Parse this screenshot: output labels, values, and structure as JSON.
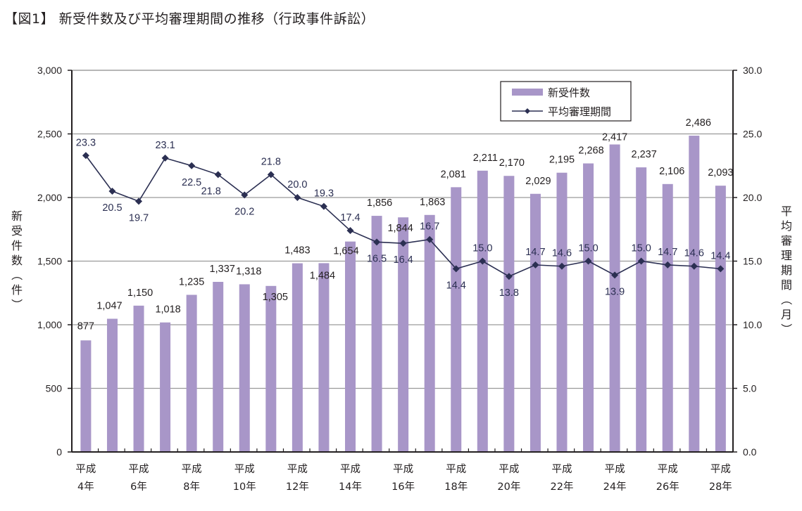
{
  "title": "【図1】 新受件数及び平均審理期間の推移（行政事件訴訟）",
  "chart_data": {
    "type": "bar+line",
    "title": "【図1】 新受件数及び平均審理期間の推移（行政事件訴訟）",
    "categories": [
      "平成4年",
      "平成5年",
      "平成6年",
      "平成7年",
      "平成8年",
      "平成9年",
      "平成10年",
      "平成11年",
      "平成12年",
      "平成13年",
      "平成14年",
      "平成15年",
      "平成16年",
      "平成17年",
      "平成18年",
      "平成19年",
      "平成20年",
      "平成21年",
      "平成22年",
      "平成23年",
      "平成24年",
      "平成25年",
      "平成26年",
      "平成27年",
      "平成28年"
    ],
    "category_tick_labels": [
      {
        "index": 0,
        "line1": "平成",
        "line2": "4年"
      },
      {
        "index": 2,
        "line1": "平成",
        "line2": "6年"
      },
      {
        "index": 4,
        "line1": "平成",
        "line2": "8年"
      },
      {
        "index": 6,
        "line1": "平成",
        "line2": "10年"
      },
      {
        "index": 8,
        "line1": "平成",
        "line2": "12年"
      },
      {
        "index": 10,
        "line1": "平成",
        "line2": "14年"
      },
      {
        "index": 12,
        "line1": "平成",
        "line2": "16年"
      },
      {
        "index": 14,
        "line1": "平成",
        "line2": "18年"
      },
      {
        "index": 16,
        "line1": "平成",
        "line2": "20年"
      },
      {
        "index": 18,
        "line1": "平成",
        "line2": "22年"
      },
      {
        "index": 20,
        "line1": "平成",
        "line2": "24年"
      },
      {
        "index": 22,
        "line1": "平成",
        "line2": "26年"
      },
      {
        "index": 24,
        "line1": "平成",
        "line2": "28年"
      }
    ],
    "series": [
      {
        "name": "新受件数",
        "type": "bar",
        "axis": "left",
        "color": "#a896c8",
        "values": [
          877,
          1047,
          1150,
          1018,
          1235,
          1337,
          1318,
          1305,
          1483,
          1484,
          1654,
          1856,
          1844,
          1863,
          2081,
          2211,
          2170,
          2029,
          2195,
          2268,
          2417,
          2237,
          2106,
          2486,
          2093
        ],
        "labels": [
          "877",
          "1,047",
          "1,150",
          "1,018",
          "1,235",
          "1,337",
          "1,318",
          "1,305",
          "1,483",
          "1,484",
          "1,654",
          "1,856",
          "1,844",
          "1,863",
          "2,081",
          "2,211",
          "2,170",
          "2,029",
          "2,195",
          "2,268",
          "2,417",
          "2,237",
          "2,106",
          "2,486",
          "2,093"
        ]
      },
      {
        "name": "平均審理期間",
        "type": "line",
        "axis": "right",
        "color": "#2b2f52",
        "marker": "diamond",
        "values": [
          23.3,
          20.5,
          19.7,
          23.1,
          22.5,
          21.8,
          20.2,
          21.8,
          20.0,
          19.3,
          17.4,
          16.5,
          16.4,
          16.7,
          14.4,
          15.0,
          13.8,
          14.7,
          14.6,
          15.0,
          13.9,
          15.0,
          14.7,
          14.6,
          14.4
        ],
        "labels": [
          "23.3",
          "20.5",
          "19.7",
          "23.1",
          "22.5",
          "21.8",
          "20.2",
          "21.8",
          "20.0",
          "19.3",
          "17.4",
          "16.5",
          "16.4",
          "16.7",
          "14.4",
          "15.0",
          "13.8",
          "14.7",
          "14.6",
          "15.0",
          "13.9",
          "15.0",
          "14.7",
          "14.6",
          "14.4"
        ]
      }
    ],
    "y_left": {
      "label": "新受件数（件）",
      "ylim": [
        0,
        3000
      ],
      "ticks": [
        0,
        500,
        1000,
        1500,
        2000,
        2500,
        3000
      ],
      "tick_labels": [
        "0",
        "500",
        "1,000",
        "1,500",
        "2,000",
        "2,500",
        "3,000"
      ]
    },
    "y_right": {
      "label": "平均審理期間（月）",
      "ylim": [
        0,
        30
      ],
      "ticks": [
        0,
        5,
        10,
        15,
        20,
        25,
        30
      ],
      "tick_labels": [
        "0.0",
        "5.0",
        "10.0",
        "15.0",
        "20.0",
        "25.0",
        "30.0"
      ]
    },
    "grid": true,
    "legend": {
      "position": "top-right",
      "entries": [
        "新受件数",
        "平均審理期間"
      ]
    }
  }
}
